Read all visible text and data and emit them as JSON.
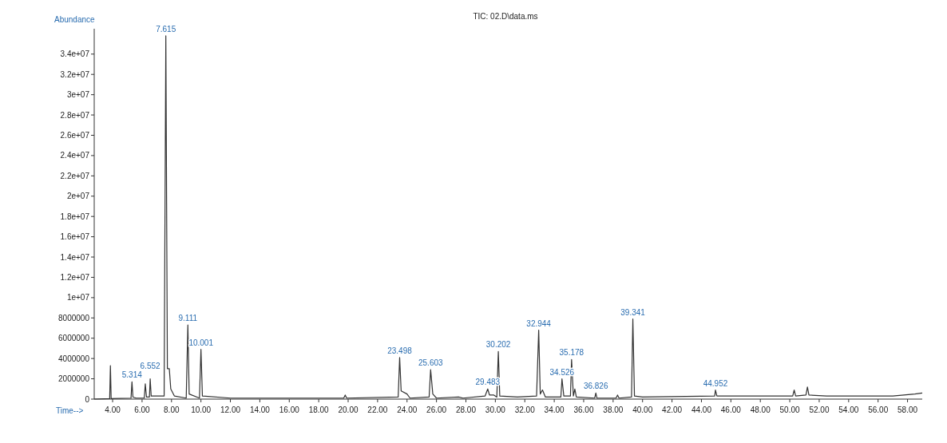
{
  "chart_data": {
    "type": "line",
    "title": "TIC: 02.D\\data.ms",
    "xlabel": "Time-->",
    "ylabel": "Abundance",
    "x": [
      2.75,
      3.8,
      3.85,
      3.9,
      5.25,
      5.314,
      5.38,
      5.6,
      6.15,
      6.22,
      6.3,
      6.5,
      6.552,
      6.62,
      7.5,
      7.615,
      7.72,
      7.85,
      7.95,
      8.2,
      9.0,
      9.111,
      9.2,
      9.9,
      10.001,
      10.1,
      12,
      19.7,
      19.8,
      19.9,
      23.4,
      23.498,
      23.6,
      24.0,
      24.2,
      25.5,
      25.603,
      25.75,
      26,
      27.5,
      27.8,
      29.3,
      29.483,
      29.6,
      29.9,
      30.1,
      30.202,
      30.3,
      31.5,
      32.8,
      32.944,
      33.05,
      33.2,
      33.4,
      34.45,
      34.526,
      34.65,
      35.1,
      35.178,
      35.3,
      35.4,
      35.5,
      36.75,
      36.826,
      36.9,
      38.2,
      38.3,
      38.4,
      39.25,
      39.341,
      39.45,
      40,
      44.9,
      44.952,
      45.05,
      50.2,
      50.3,
      50.4,
      51.1,
      51.2,
      51.3,
      52.5,
      57,
      58.5,
      59
    ],
    "series": [
      {
        "color": "#333333",
        "values": [
          0,
          50000,
          3300000,
          50000,
          100000,
          1700000,
          200000,
          100000,
          100000,
          1500000,
          200000,
          200000,
          2000000,
          300000,
          300000,
          35800000,
          3000000,
          3000000,
          1000000,
          300000,
          100000,
          7300000,
          500000,
          100000,
          4900000,
          300000,
          100000,
          100000,
          400000,
          100000,
          200000,
          4100000,
          800000,
          500000,
          100000,
          200000,
          2900000,
          500000,
          100000,
          200000,
          100000,
          300000,
          1000000,
          400000,
          400000,
          200000,
          4700000,
          300000,
          200000,
          300000,
          6800000,
          500000,
          900000,
          200000,
          200000,
          2000000,
          300000,
          300000,
          3900000,
          300000,
          1000000,
          200000,
          100000,
          600000,
          100000,
          100000,
          400000,
          100000,
          200000,
          7900000,
          300000,
          200000,
          300000,
          900000,
          300000,
          300000,
          900000,
          300000,
          400000,
          1200000,
          400000,
          300000,
          300000,
          500000,
          600000
        ]
      }
    ],
    "xlim": [
      2.75,
      59
    ],
    "ylim": [
      0,
      36500000
    ],
    "xticks": [
      {
        "value": 4,
        "label": "4.00"
      },
      {
        "value": 6,
        "label": "6.00"
      },
      {
        "value": 8,
        "label": "8.00"
      },
      {
        "value": 10,
        "label": "10.00"
      },
      {
        "value": 12,
        "label": "12.00"
      },
      {
        "value": 14,
        "label": "14.00"
      },
      {
        "value": 16,
        "label": "16.00"
      },
      {
        "value": 18,
        "label": "18.00"
      },
      {
        "value": 20,
        "label": "20.00"
      },
      {
        "value": 22,
        "label": "22.00"
      },
      {
        "value": 24,
        "label": "24.00"
      },
      {
        "value": 26,
        "label": "26.00"
      },
      {
        "value": 28,
        "label": "28.00"
      },
      {
        "value": 30,
        "label": "30.00"
      },
      {
        "value": 32,
        "label": "32.00"
      },
      {
        "value": 34,
        "label": "34.00"
      },
      {
        "value": 36,
        "label": "36.00"
      },
      {
        "value": 38,
        "label": "38.00"
      },
      {
        "value": 40,
        "label": "40.00"
      },
      {
        "value": 42,
        "label": "42.00"
      },
      {
        "value": 44,
        "label": "44.00"
      },
      {
        "value": 46,
        "label": "46.00"
      },
      {
        "value": 48,
        "label": "48.00"
      },
      {
        "value": 50,
        "label": "50.00"
      },
      {
        "value": 52,
        "label": "52.00"
      },
      {
        "value": 54,
        "label": "54.00"
      },
      {
        "value": 56,
        "label": "56.00"
      },
      {
        "value": 58,
        "label": "58.00"
      }
    ],
    "yticks": [
      0,
      2000000,
      4000000,
      6000000,
      8000000,
      {
        "value": 10000000,
        "label": "1e+07"
      },
      {
        "value": 12000000,
        "label": "1.2e+07"
      },
      {
        "value": 14000000,
        "label": "1.4e+07"
      },
      {
        "value": 16000000,
        "label": "1.6e+07"
      },
      {
        "value": 18000000,
        "label": "1.8e+07"
      },
      {
        "value": 20000000,
        "label": "2e+07"
      },
      {
        "value": 22000000,
        "label": "2.2e+07"
      },
      {
        "value": 24000000,
        "label": "2.4e+07"
      },
      {
        "value": 26000000,
        "label": "2.6e+07"
      },
      {
        "value": 28000000,
        "label": "2.8e+07"
      },
      {
        "value": 30000000,
        "label": "3e+07"
      },
      {
        "value": 32000000,
        "label": "3.2e+07"
      },
      {
        "value": 34000000,
        "label": "3.4e+07"
      }
    ],
    "marker": "none",
    "line_style": "solid",
    "annotations": [
      {
        "text": "5.314",
        "x": 5.314,
        "y": 1700000
      },
      {
        "text": "6.552",
        "x": 6.552,
        "y": 2000000
      },
      {
        "text": "7.615",
        "x": 7.615,
        "y": 35800000
      },
      {
        "text": "9.111",
        "x": 9.111,
        "y": 7300000
      },
      {
        "text": "10.001",
        "x": 10.001,
        "y": 4900000
      },
      {
        "text": "23.498",
        "x": 23.498,
        "y": 4100000
      },
      {
        "text": "25.603",
        "x": 25.603,
        "y": 2900000
      },
      {
        "text": "29.483",
        "x": 29.483,
        "y": 1000000
      },
      {
        "text": "30.202",
        "x": 30.202,
        "y": 4700000
      },
      {
        "text": "32.944",
        "x": 32.944,
        "y": 6800000
      },
      {
        "text": "34.526",
        "x": 34.526,
        "y": 2000000
      },
      {
        "text": "35.178",
        "x": 35.178,
        "y": 3900000
      },
      {
        "text": "36.826",
        "x": 36.826,
        "y": 600000
      },
      {
        "text": "39.341",
        "x": 39.341,
        "y": 7900000
      },
      {
        "text": "44.952",
        "x": 44.952,
        "y": 900000
      }
    ]
  }
}
